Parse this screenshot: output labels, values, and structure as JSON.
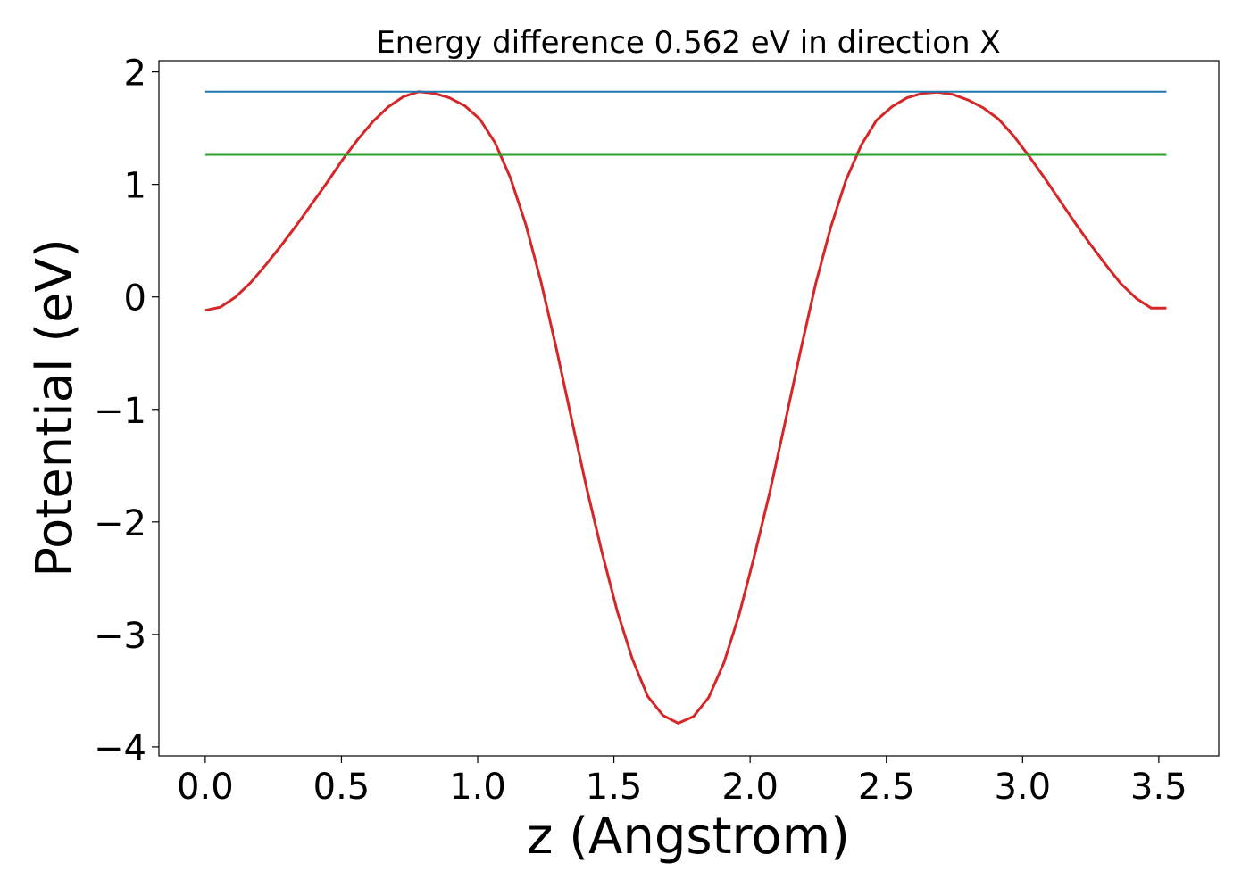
{
  "chart_data": {
    "type": "line",
    "title": "Energy difference 0.562 eV in direction X",
    "xlabel": "z (Angstrom)",
    "ylabel": "Potential (eV)",
    "xlim": [
      -0.17,
      3.72
    ],
    "ylim": [
      -4.08,
      2.1
    ],
    "xticks": [
      0.0,
      0.5,
      1.0,
      1.5,
      2.0,
      2.5,
      3.0,
      3.5
    ],
    "xtick_labels": [
      "0.0",
      "0.5",
      "1.0",
      "1.5",
      "2.0",
      "2.5",
      "3.0",
      "3.5"
    ],
    "yticks": [
      -4,
      -3,
      -2,
      -1,
      0,
      1,
      2
    ],
    "ytick_labels": [
      "−4",
      "−3",
      "−2",
      "−1",
      "0",
      "1",
      "2"
    ],
    "grid": false,
    "series": [
      {
        "color": "#d62728",
        "style": "line",
        "x": [
          0.0,
          0.056,
          0.112,
          0.168,
          0.224,
          0.28,
          0.336,
          0.392,
          0.448,
          0.504,
          0.56,
          0.616,
          0.672,
          0.728,
          0.784,
          0.84,
          0.896,
          0.952,
          1.008,
          1.064,
          1.12,
          1.176,
          1.232,
          1.288,
          1.344,
          1.4,
          1.456,
          1.512,
          1.568,
          1.624,
          1.68,
          1.736,
          1.792,
          1.848,
          1.904,
          1.96,
          2.016,
          2.072,
          2.128,
          2.184,
          2.24,
          2.296,
          2.352,
          2.408,
          2.464,
          2.52,
          2.576,
          2.632,
          2.688,
          2.744,
          2.8,
          2.856,
          2.912,
          2.968,
          3.024,
          3.08,
          3.136,
          3.192,
          3.248,
          3.304,
          3.36,
          3.416,
          3.472,
          3.528
        ],
        "y": [
          -0.12,
          -0.09,
          0.0,
          0.13,
          0.29,
          0.46,
          0.64,
          0.83,
          1.02,
          1.22,
          1.4,
          1.56,
          1.69,
          1.78,
          1.825,
          1.81,
          1.77,
          1.7,
          1.58,
          1.37,
          1.06,
          0.65,
          0.14,
          -0.45,
          -1.08,
          -1.7,
          -2.27,
          -2.79,
          -3.22,
          -3.55,
          -3.72,
          -3.79,
          -3.73,
          -3.56,
          -3.25,
          -2.82,
          -2.3,
          -1.74,
          -1.12,
          -0.49,
          0.11,
          0.62,
          1.04,
          1.35,
          1.57,
          1.69,
          1.77,
          1.81,
          1.82,
          1.8,
          1.75,
          1.68,
          1.58,
          1.43,
          1.25,
          1.06,
          0.86,
          0.66,
          0.47,
          0.29,
          0.12,
          -0.01,
          -0.1,
          -0.1
        ]
      },
      {
        "color": "#1f77b4",
        "style": "hline",
        "x": [
          0.0,
          3.528
        ],
        "y": [
          1.825,
          1.825
        ]
      },
      {
        "color": "#2ca02c",
        "style": "hline",
        "x": [
          0.0,
          3.528
        ],
        "y": [
          1.263,
          1.263
        ]
      }
    ]
  }
}
